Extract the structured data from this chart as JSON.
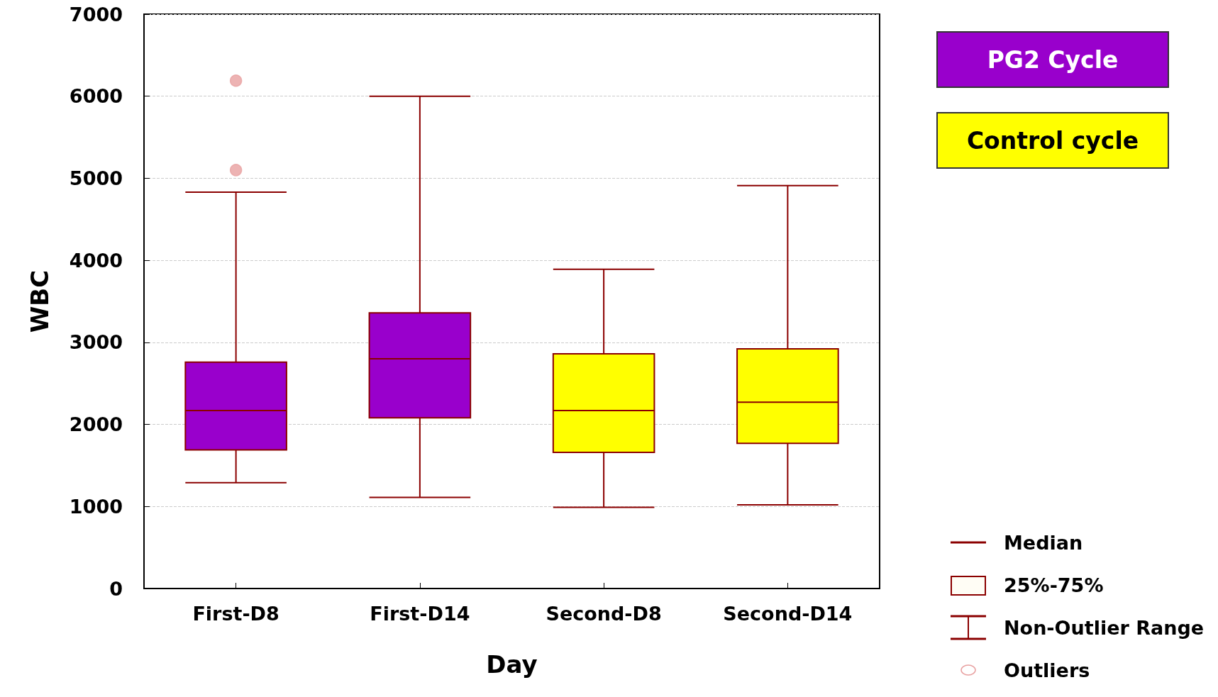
{
  "chart_data": {
    "type": "box",
    "xlabel": "Day",
    "ylabel": "WBC",
    "categories": [
      "First-D8",
      "First-D14",
      "Second-D8",
      "Second-D14"
    ],
    "series": [
      {
        "name": "PG2 Cycle",
        "color": "#9900cc",
        "boxes": [
          {
            "low": 1290,
            "q1": 1690,
            "median": 2170,
            "q3": 2760,
            "high": 4830
          },
          {
            "low": 1110,
            "q1": 2080,
            "median": 2800,
            "q3": 3360,
            "high": 6000
          },
          null,
          null
        ]
      },
      {
        "name": "Control cycle",
        "color": "#ffff00",
        "boxes": [
          null,
          null,
          {
            "low": 990,
            "q1": 1660,
            "median": 2170,
            "q3": 2860,
            "high": 3890
          },
          {
            "low": 1020,
            "q1": 1770,
            "median": 2270,
            "q3": 2920,
            "high": 4910
          }
        ]
      },
      {
        "type": "scatter",
        "color": "#e8a0a0",
        "x": [
          "First-D8",
          "First-D8"
        ],
        "values": [
          6190,
          5100
        ]
      }
    ],
    "ylim": [
      0,
      7000
    ],
    "yticks": [
      0,
      1000,
      2000,
      3000,
      4000,
      5000,
      6000,
      7000
    ],
    "grid": "y",
    "legend": "top right",
    "marker": "circle",
    "annotations": [
      "Median",
      "25%-75%",
      "Non-Outlier Range",
      "Outliers"
    ]
  }
}
